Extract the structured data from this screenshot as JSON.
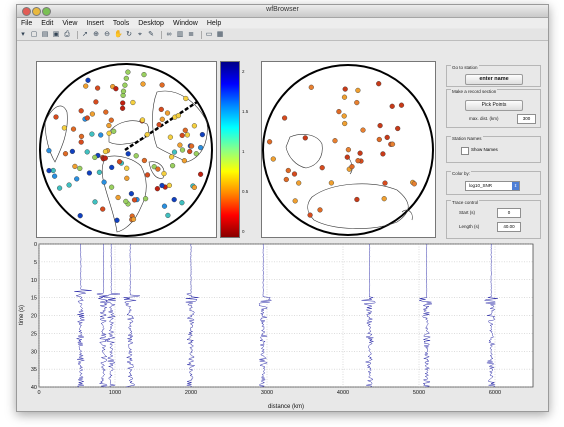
{
  "window": {
    "title": "wfBrowser"
  },
  "menu": [
    "File",
    "Edit",
    "View",
    "Insert",
    "Tools",
    "Desktop",
    "Window",
    "Help"
  ],
  "toolbar_icons": [
    "arrow-dropdown-icon",
    "new-figure-icon",
    "open-icon",
    "save-icon",
    "print-icon",
    "select-arrow-icon",
    "zoom-in-icon",
    "zoom-out-icon",
    "pan-icon",
    "rotate-icon",
    "data-cursor-icon",
    "brush-icon",
    "link-icon",
    "colorbar-icon",
    "legend-icon",
    "hide-tools-icon",
    "show-tools-icon"
  ],
  "colorbar": {
    "ticks": [
      "2",
      "1.5",
      "1",
      "0.5",
      "0"
    ],
    "colors": [
      "#000088",
      "#0000ff",
      "#0088ff",
      "#00ffff",
      "#88ff88",
      "#ffff00",
      "#ff8800",
      "#ff0000",
      "#880000"
    ]
  },
  "controls": {
    "goto_station": {
      "title": "Go to station",
      "value": "enter name"
    },
    "record_section": {
      "title": "Make a record section",
      "button": "Pick Points",
      "label": "max. dist. (km)",
      "value": "300"
    },
    "station_names": {
      "title": "Station Names",
      "checkbox": "Show Names",
      "checked": false
    },
    "color_by": {
      "title": "Color by:",
      "selected": "log10_SNR"
    },
    "trace_control": {
      "title": "Trace control",
      "start_label": "Start (s)",
      "start_value": "0",
      "length_label": "Length (s)",
      "length_value": "40.00"
    }
  },
  "chart_data": {
    "type": "line",
    "title": "",
    "xlabel": "distance (km)",
    "ylabel": "time (s)",
    "xlim": [
      0,
      6500
    ],
    "ylim": [
      0,
      40
    ],
    "y_reversed": true,
    "grid": true,
    "x_ticks": [
      0,
      1000,
      2000,
      3000,
      4000,
      5000,
      6000
    ],
    "y_ticks": [
      0,
      5,
      10,
      15,
      20,
      25,
      30,
      35,
      40
    ],
    "line_color": "#2a2aa8",
    "trace_distances": [
      550,
      850,
      950,
      1200,
      2000,
      2950,
      4350,
      5100,
      5950
    ],
    "first_arrival_times": [
      13,
      14,
      14,
      14.5,
      14,
      15,
      15,
      15,
      15
    ]
  }
}
